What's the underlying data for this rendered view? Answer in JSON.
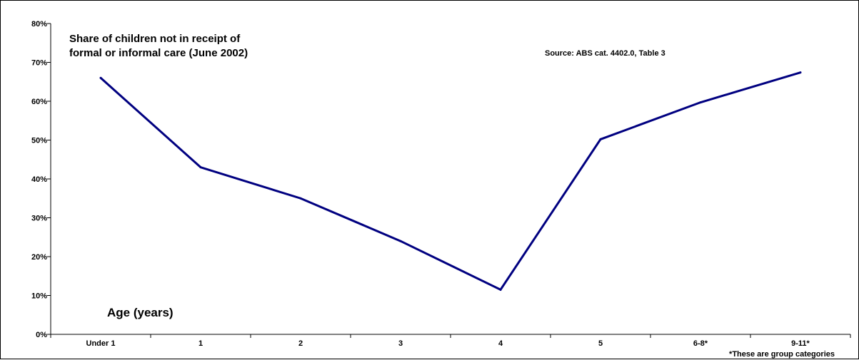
{
  "chart_data": {
    "type": "line",
    "title_lines": [
      "Share of children not in receipt of",
      "formal or informal care (June 2002)"
    ],
    "source": "Source: ABS cat. 4402.0, Table 3",
    "xlabel": "Age (years)",
    "ylabel": "",
    "footnote": "*These are group categories",
    "categories": [
      "Under 1",
      "1",
      "2",
      "3",
      "4",
      "5",
      "6-8*",
      "9-11*"
    ],
    "y_tick_labels": [
      "0%",
      "10%",
      "20%",
      "30%",
      "40%",
      "50%",
      "60%",
      "70%",
      "80%"
    ],
    "ylim": [
      0,
      80
    ],
    "grid": false,
    "series": [
      {
        "values": [
          66.0,
          43.0,
          35.0,
          24.0,
          11.5,
          50.2,
          59.7,
          67.4
        ],
        "color": "#000080"
      }
    ]
  }
}
